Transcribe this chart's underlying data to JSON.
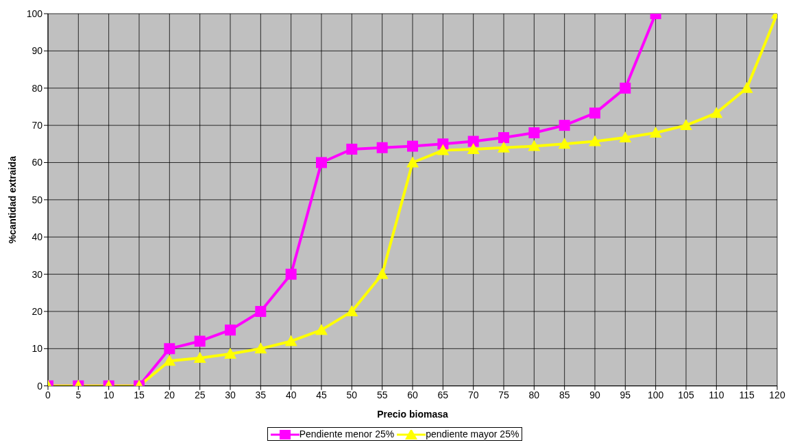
{
  "chart_data": {
    "type": "line",
    "xlabel": "Precio biomasa",
    "ylabel": "%cantidad extraida",
    "xlim": [
      0,
      120
    ],
    "xticks": [
      0,
      5,
      10,
      15,
      20,
      25,
      30,
      35,
      40,
      45,
      50,
      55,
      60,
      65,
      70,
      75,
      80,
      85,
      90,
      95,
      100,
      105,
      110,
      115,
      120
    ],
    "ylim": [
      0,
      100
    ],
    "yticks": [
      0,
      10,
      20,
      30,
      40,
      50,
      60,
      70,
      80,
      90,
      100
    ],
    "grid": true,
    "legend": "bottom",
    "series": [
      {
        "name": "Pendiente menor 25%",
        "color": "#ff00ff",
        "marker": "square",
        "x": [
          0,
          5,
          10,
          15,
          20,
          25,
          30,
          35,
          40,
          45,
          50,
          55,
          60,
          65,
          70,
          75,
          80,
          85,
          90,
          95,
          100
        ],
        "values": [
          0,
          0,
          0,
          0,
          10,
          12,
          15,
          20,
          30,
          60,
          63.6,
          64,
          64.4,
          65,
          65.7,
          66.7,
          68,
          70,
          73.3,
          80,
          100
        ]
      },
      {
        "name": "pendiente mayor 25%",
        "color": "#ffff00",
        "marker": "triangle",
        "x": [
          0,
          5,
          10,
          15,
          20,
          25,
          30,
          35,
          40,
          45,
          50,
          55,
          60,
          65,
          70,
          75,
          80,
          85,
          90,
          95,
          100,
          105,
          110,
          115,
          120
        ],
        "values": [
          0,
          0,
          0,
          0,
          6.7,
          7.5,
          8.6,
          10,
          12,
          15,
          20,
          30,
          60,
          63.3,
          63.6,
          64,
          64.4,
          65,
          65.7,
          66.7,
          68,
          70,
          73.3,
          80,
          100
        ]
      }
    ]
  }
}
